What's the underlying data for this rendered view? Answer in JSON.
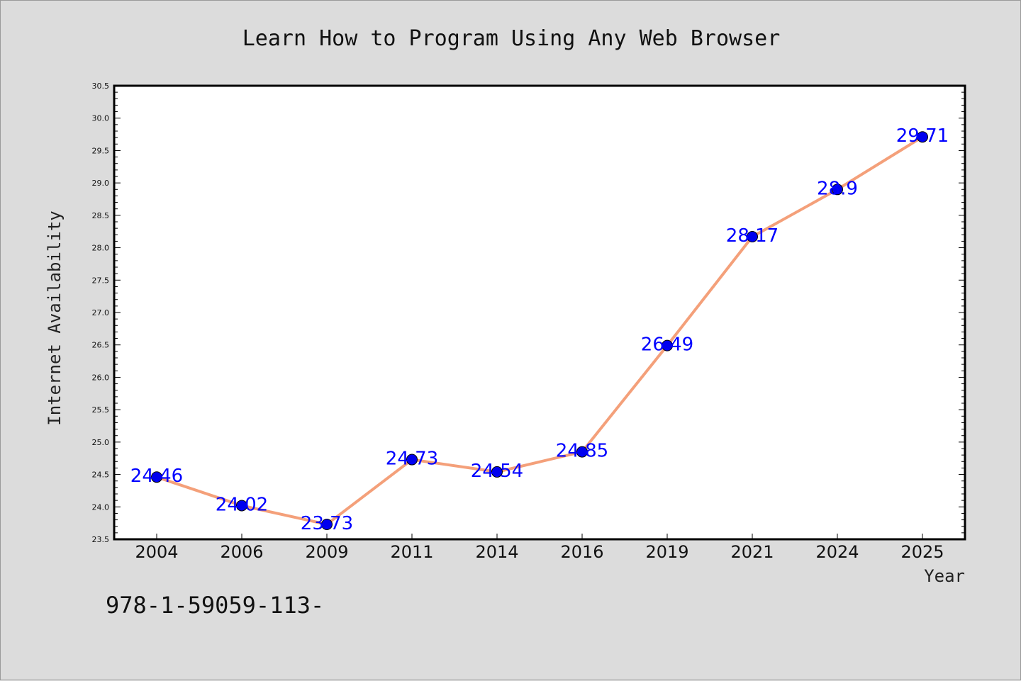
{
  "chart_data": {
    "type": "line",
    "title": "Learn How to Program Using Any Web Browser",
    "xlabel": "Year",
    "ylabel": "Internet Availability",
    "categories": [
      "2004",
      "2006",
      "2009",
      "2011",
      "2014",
      "2016",
      "2019",
      "2021",
      "2024",
      "2025"
    ],
    "series": [
      {
        "values": [
          24.46,
          24.02,
          23.73,
          24.73,
          24.54,
          24.85,
          26.49,
          28.17,
          28.9,
          29.71
        ],
        "labels": [
          "24.46",
          "24.02",
          "23.73",
          "24.73",
          "24.54",
          "24.85",
          "26.49",
          "28.17",
          "28.9",
          "29.71"
        ]
      }
    ],
    "ylim": [
      23.5,
      30.5
    ],
    "yticks": [
      "23.5",
      "24.0",
      "24.5",
      "25.0",
      "25.5",
      "26.0",
      "26.5",
      "27.0",
      "27.5",
      "28.0",
      "28.5",
      "29.0",
      "29.5",
      "30.0",
      "30.5"
    ],
    "grid": false,
    "legend": "none"
  },
  "footer": {
    "text": "978-1-59059-113-"
  },
  "colors": {
    "background": "#dcdcdc",
    "plot_background": "#ffffff",
    "line": "#f4a07a",
    "marker": "#0000ee",
    "data_label": "#0000ff"
  }
}
